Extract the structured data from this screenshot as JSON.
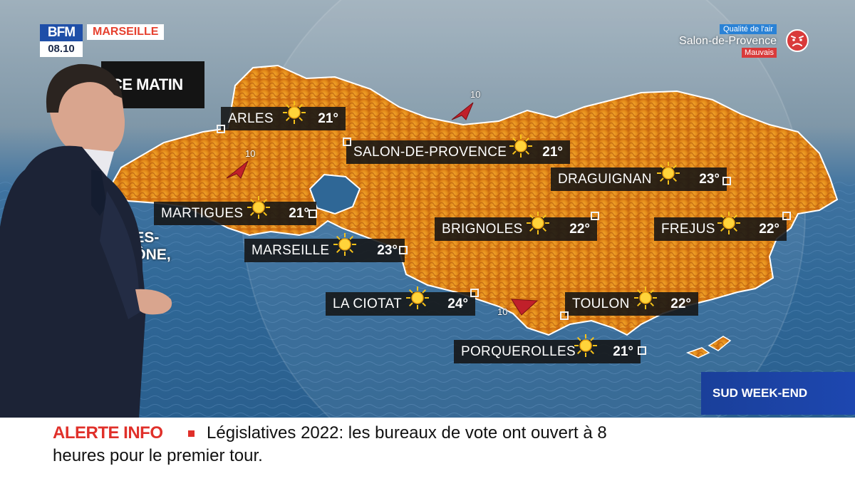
{
  "channel": {
    "logo_text": "BFM",
    "time": "08.10",
    "region": "MARSEILLE"
  },
  "air_quality": {
    "title": "Qualité de l'air",
    "city": "Salon-de-Provence",
    "status": "Mauvais",
    "icon": "angry-face-icon",
    "status_color": "#d93a3a"
  },
  "segment_title": "CE MATIN",
  "partial_coast_label": [
    "CHES-",
    "RHÔNE,"
  ],
  "cities": [
    {
      "name": "ARLES",
      "temp": "21°",
      "icon": "sun-icon"
    },
    {
      "name": "SALON-DE-PROVENCE",
      "temp": "21°",
      "icon": "sun-icon"
    },
    {
      "name": "DRAGUIGNAN",
      "temp": "23°",
      "icon": "sun-icon"
    },
    {
      "name": "MARTIGUES",
      "temp": "21°",
      "icon": "sun-icon"
    },
    {
      "name": "BRIGNOLES",
      "temp": "22°",
      "icon": "sun-icon"
    },
    {
      "name": "FREJUS",
      "temp": "22°",
      "icon": "sun-icon"
    },
    {
      "name": "MARSEILLE",
      "temp": "23°",
      "icon": "sun-icon"
    },
    {
      "name": "LA CIOTAT",
      "temp": "24°",
      "icon": "sun-icon"
    },
    {
      "name": "TOULON",
      "temp": "22°",
      "icon": "sun-icon"
    },
    {
      "name": "PORQUEROLLES",
      "temp": "21°",
      "icon": "sun-icon"
    }
  ],
  "wind": [
    {
      "speed": "10",
      "icon": "wind-arrow-icon"
    },
    {
      "speed": "10",
      "icon": "wind-arrow-icon"
    },
    {
      "speed": "10",
      "icon": "wind-arrow-icon"
    }
  ],
  "program": "SUD WEEK-END",
  "ticker": {
    "label": "ALERTE INFO",
    "line1": "Législatives 2022: les bureaux de vote ont ouvert à 8",
    "line2": "heures pour le premier tour.",
    "label_color": "#e0302a"
  },
  "colors": {
    "land": "#e8941f",
    "sea": "#2f6796",
    "brand_blue": "#1f4fa8"
  }
}
